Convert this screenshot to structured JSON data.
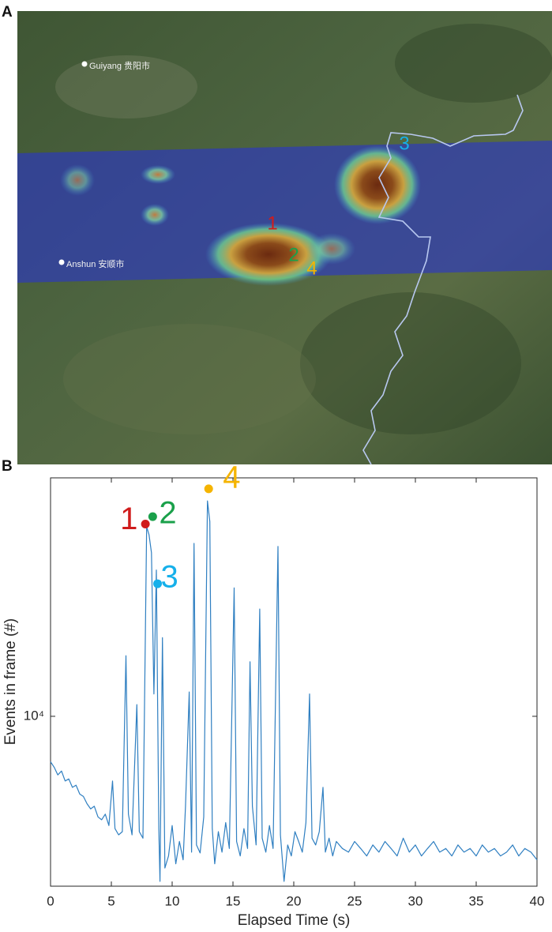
{
  "panel_a": {
    "label": "A",
    "places": [
      "Guiyang 贵阳市",
      "Anshun 安顺市"
    ]
  },
  "panel_b": {
    "label": "B"
  },
  "chart_data": {
    "type": "line",
    "yscale": "log",
    "color": "#2f7fc1",
    "xlabel": "Elapsed Time (s)",
    "ylabel": "Events in frame (#)",
    "xlim": [
      0,
      40
    ],
    "xticks": [
      0,
      5,
      10,
      15,
      20,
      25,
      30,
      35,
      40
    ],
    "ylim": [
      2500,
      70000
    ],
    "yticks": [
      {
        "value": 10000,
        "label": "10⁴"
      }
    ],
    "x": [
      0,
      0.3,
      0.6,
      0.9,
      1.2,
      1.5,
      1.8,
      2.1,
      2.4,
      2.7,
      3.0,
      3.3,
      3.6,
      3.9,
      4.2,
      4.5,
      4.8,
      5.1,
      5.3,
      5.6,
      5.9,
      6.2,
      6.4,
      6.7,
      7.1,
      7.3,
      7.6,
      7.9,
      8.1,
      8.3,
      8.5,
      8.7,
      8.9,
      9.0,
      9.2,
      9.4,
      9.7,
      10.0,
      10.3,
      10.6,
      10.9,
      11.1,
      11.4,
      11.6,
      11.8,
      12.0,
      12.3,
      12.6,
      12.9,
      13.1,
      13.3,
      13.5,
      13.8,
      14.1,
      14.4,
      14.7,
      15.1,
      15.3,
      15.6,
      15.9,
      16.2,
      16.4,
      16.6,
      16.9,
      17.2,
      17.4,
      17.7,
      18.0,
      18.3,
      18.7,
      18.9,
      19.2,
      19.5,
      19.8,
      20.1,
      20.4,
      20.7,
      21.0,
      21.3,
      21.5,
      21.8,
      22.1,
      22.4,
      22.6,
      22.9,
      23.2,
      23.5,
      24,
      24.5,
      25,
      25.5,
      26,
      26.5,
      27,
      27.5,
      28,
      28.5,
      29,
      29.5,
      30,
      30.5,
      31,
      31.5,
      32,
      32.5,
      33,
      33.5,
      34,
      34.5,
      35,
      35.5,
      36,
      36.5,
      37,
      37.5,
      38,
      38.5,
      39,
      39.5,
      40
    ],
    "values": [
      6900,
      6600,
      6200,
      6400,
      5900,
      6000,
      5600,
      5700,
      5300,
      5200,
      4900,
      4700,
      4800,
      4400,
      4300,
      4500,
      4100,
      5900,
      4000,
      3800,
      3900,
      16400,
      4500,
      3800,
      11000,
      3900,
      3700,
      47000,
      44000,
      38000,
      12000,
      33000,
      4000,
      2600,
      19000,
      2900,
      3200,
      4100,
      3000,
      3600,
      3100,
      4800,
      12200,
      3300,
      41000,
      3500,
      3280,
      4400,
      58000,
      49000,
      4000,
      3000,
      3900,
      3300,
      4200,
      3400,
      28500,
      3600,
      3200,
      4000,
      3400,
      15600,
      4800,
      3500,
      24000,
      3700,
      3300,
      4100,
      3400,
      40000,
      3800,
      2600,
      3500,
      3200,
      3900,
      3600,
      3300,
      4200,
      12000,
      3700,
      3500,
      3900,
      5600,
      3300,
      3700,
      3200,
      3600,
      3400,
      3300,
      3600,
      3400,
      3200,
      3500,
      3300,
      3600,
      3400,
      3200,
      3700,
      3300,
      3500,
      3200,
      3400,
      3600,
      3300,
      3400,
      3200,
      3500,
      3300,
      3400,
      3200,
      3500,
      3300,
      3400,
      3200,
      3300,
      3500,
      3200,
      3400,
      3300,
      3100
    ],
    "markers": [
      {
        "label": "1",
        "x": 7.8,
        "y": 48000,
        "color": "#d01c1c"
      },
      {
        "label": "2",
        "x": 8.4,
        "y": 51000,
        "color": "#1aa04a"
      },
      {
        "label": "3",
        "x": 8.8,
        "y": 29500,
        "color": "#16b0ea"
      },
      {
        "label": "4",
        "x": 13.0,
        "y": 64000,
        "color": "#f5b400"
      }
    ]
  }
}
